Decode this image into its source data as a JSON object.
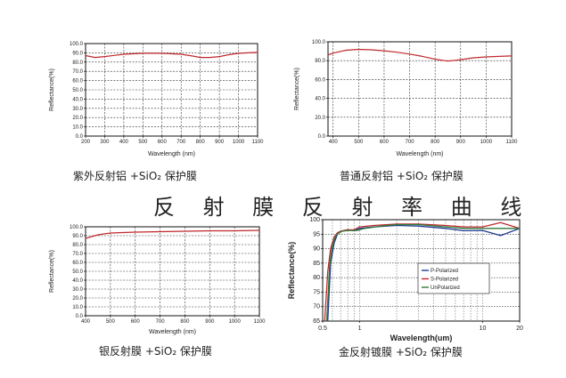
{
  "title": "反 射 膜 反 射 率 曲 线",
  "chart_data": [
    {
      "type": "line",
      "caption": "紫外反射铝 +SiO₂ 保护膜",
      "xlabel": "Wavelength (nm)",
      "ylabel": "Reflectance(%)",
      "xlim": [
        200,
        1100
      ],
      "ylim": [
        0,
        100
      ],
      "xticks": [
        200,
        300,
        400,
        500,
        600,
        700,
        800,
        900,
        1000,
        1100
      ],
      "yticks": [
        0,
        10,
        20,
        30,
        40,
        50,
        60,
        70,
        80,
        90,
        100
      ],
      "ytick_labels": [
        "0.0",
        "10.0",
        "20.0",
        "30.0",
        "40.0",
        "50.0",
        "60.0",
        "70.0",
        "80.0",
        "90.0",
        "100.0"
      ],
      "grid": true,
      "series": [
        {
          "color": "#c0282c",
          "x": [
            200,
            250,
            300,
            400,
            500,
            600,
            700,
            760,
            800,
            850,
            900,
            950,
            1000,
            1100
          ],
          "y": [
            87,
            85,
            86,
            88.5,
            89.5,
            89.5,
            88.5,
            86.5,
            85,
            85,
            86,
            88,
            89.5,
            90.5
          ]
        }
      ]
    },
    {
      "type": "line",
      "caption": "普通反射铝 +SiO₂ 保护膜",
      "xlabel": "Wavelength (nm)",
      "ylabel": "Reflectance(%)",
      "xlim": [
        380,
        1100
      ],
      "ylim": [
        0,
        100
      ],
      "xticks": [
        400,
        500,
        600,
        700,
        800,
        900,
        1000,
        1100
      ],
      "yticks": [
        0,
        20,
        40,
        60,
        80,
        100
      ],
      "ytick_labels": [
        "0.0",
        "20.0",
        "40.0",
        "60.0",
        "80.0",
        "100.0"
      ],
      "grid": true,
      "series": [
        {
          "color": "#c0282c",
          "x": [
            380,
            400,
            450,
            500,
            550,
            600,
            650,
            700,
            750,
            800,
            850,
            900,
            950,
            1000,
            1050,
            1100
          ],
          "y": [
            86,
            88,
            91,
            92,
            91.5,
            90.5,
            89,
            87,
            84.5,
            81.5,
            79.5,
            81,
            83,
            84,
            84.5,
            85
          ]
        }
      ]
    },
    {
      "type": "line",
      "caption": "银反射膜 +SiO₂ 保护膜",
      "xlabel": "Wavelength (nm)",
      "ylabel": "Reflectance(%)",
      "xlim": [
        400,
        1100
      ],
      "ylim": [
        0,
        100
      ],
      "xticks": [
        400,
        500,
        600,
        700,
        800,
        900,
        1000,
        1100
      ],
      "yticks": [
        0,
        10,
        20,
        30,
        40,
        50,
        60,
        70,
        80,
        90,
        100
      ],
      "ytick_labels": [
        "0.0",
        "10.0",
        "20.0",
        "30.0",
        "40.0",
        "50.0",
        "60.0",
        "70.0",
        "80.0",
        "90.0",
        "100.0"
      ],
      "grid": true,
      "series": [
        {
          "color": "#c0282c",
          "x": [
            400,
            450,
            500,
            600,
            700,
            800,
            900,
            1000,
            1100
          ],
          "y": [
            87,
            91,
            93,
            94,
            94.5,
            95,
            95.5,
            95.5,
            96
          ]
        }
      ]
    },
    {
      "type": "line",
      "caption": "金反射镀膜 +SiO₂ 保护膜",
      "xlabel": "Wavelength(um)",
      "ylabel": "Reflectance(%)",
      "xscale": "log",
      "xlim": [
        0.5,
        20
      ],
      "ylim": [
        65,
        100
      ],
      "xticks": [
        0.5,
        1,
        10,
        20
      ],
      "xtick_labels": [
        "0.5",
        "1",
        "10",
        "20"
      ],
      "yticks": [
        65,
        70,
        75,
        80,
        85,
        90,
        95,
        100
      ],
      "grid": true,
      "legend": "center-right",
      "series": [
        {
          "name": "P-Polarized",
          "color": "#1f3a93",
          "x": [
            0.55,
            0.58,
            0.62,
            0.66,
            0.7,
            0.75,
            0.8,
            0.9,
            1.0,
            1.3,
            2,
            3,
            5,
            7,
            10,
            14,
            20
          ],
          "y": [
            65,
            85,
            92,
            95,
            96,
            96.3,
            96.5,
            96.2,
            97,
            97.5,
            98,
            97.8,
            97,
            96.2,
            96.3,
            94.5,
            97
          ]
        },
        {
          "name": "S-Polarized",
          "color": "#c0282c",
          "x": [
            0.52,
            0.55,
            0.58,
            0.62,
            0.66,
            0.7,
            0.75,
            0.8,
            0.9,
            1.0,
            1.3,
            2,
            3,
            5,
            7,
            10,
            14,
            20
          ],
          "y": [
            65,
            82,
            90,
            94,
            95.5,
            96,
            96.3,
            96.5,
            96.5,
            97.5,
            98,
            98.5,
            98.5,
            98,
            97.5,
            97.5,
            99,
            97
          ]
        },
        {
          "name": "UnPolarized",
          "color": "#2f7a3a",
          "x": [
            0.54,
            0.57,
            0.6,
            0.64,
            0.68,
            0.72,
            0.78,
            0.85,
            0.95,
            1.1,
            1.5,
            2,
            3,
            5,
            7,
            10,
            14,
            20
          ],
          "y": [
            65,
            84,
            91,
            94.5,
            95.5,
            96,
            96.2,
            96.3,
            96.3,
            97,
            97.8,
            98.3,
            98.3,
            97.5,
            97,
            97,
            97,
            97
          ]
        }
      ]
    }
  ]
}
